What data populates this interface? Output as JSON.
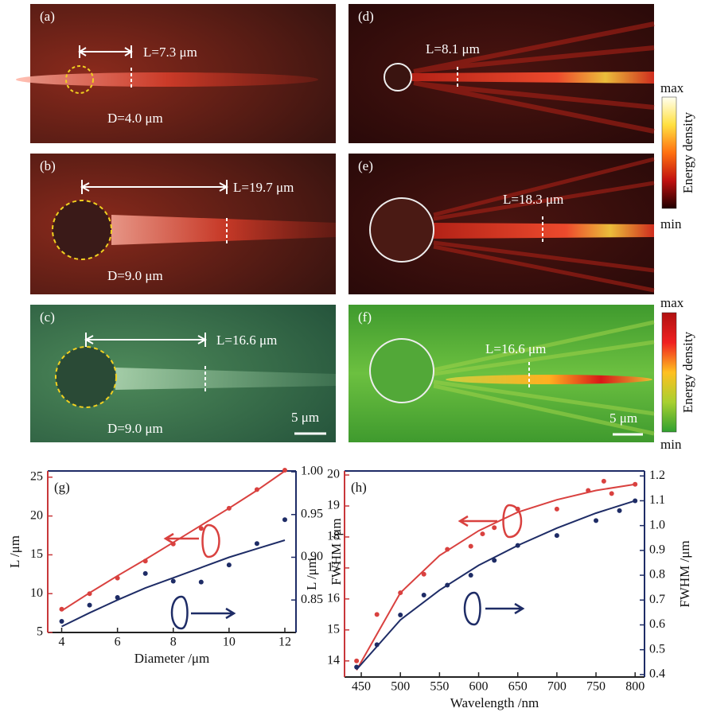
{
  "panels": [
    {
      "label": "(a)",
      "length": "L=7.3 μm",
      "diameter": "D=4.0 μm"
    },
    {
      "label": "(b)",
      "length": "L=19.7 μm",
      "diameter": "D=9.0 μm"
    },
    {
      "label": "(c)",
      "length": "L=16.6 μm",
      "diameter": "D=9.0 μm",
      "scale": "5 μm"
    },
    {
      "label": "(d)",
      "length": "L=8.1 μm"
    },
    {
      "label": "(e)",
      "length": "L=18.3 μm"
    },
    {
      "label": "(f)",
      "length": "L=16.6 μm",
      "scale": "5 μm"
    }
  ],
  "colorbars": [
    {
      "max": "max",
      "min": "min",
      "label": "Energy density"
    },
    {
      "max": "max",
      "min": "min",
      "label": "Energy density"
    }
  ],
  "chart_data": [
    {
      "type": "scatter",
      "label": "(g)",
      "x_label": "Diameter /μm",
      "y_label": "L /μm",
      "y2_label": "FWHM /μm",
      "xlim": [
        3.5,
        12.4
      ],
      "xticks": [
        4,
        6,
        8,
        10,
        12
      ],
      "ylim": [
        5,
        25.8
      ],
      "yticks": [
        5,
        10,
        15,
        20,
        25
      ],
      "y2lim": [
        0.812,
        1.001
      ],
      "y2ticks": [
        0.85,
        {
          "value": 0.9,
          "label": "0.90"
        },
        0.95,
        {
          "value": 1,
          "label": "1.00"
        }
      ],
      "ycolor": "#c8373a",
      "y2color": "#1e2c66",
      "series": [
        {
          "mode": "points",
          "color": "#d9413f",
          "x": [
            4,
            5,
            6,
            7,
            8,
            9,
            10,
            11,
            12
          ],
          "values": [
            8.0,
            10.0,
            12.0,
            14.2,
            16.4,
            18.4,
            21.0,
            23.4,
            25.9
          ]
        },
        {
          "mode": "line",
          "color": "#d9413f",
          "x": [
            4,
            5,
            6,
            7,
            8,
            9,
            10,
            11,
            12
          ],
          "values": [
            7.8,
            10.1,
            12.3,
            14.4,
            16.6,
            18.8,
            21.0,
            23.3,
            25.8
          ]
        },
        {
          "mode": "points",
          "color": "#1e2c66",
          "axis": "y2",
          "x": [
            4,
            5,
            6,
            7,
            8,
            9,
            10,
            11,
            12
          ],
          "values": [
            0.825,
            0.844,
            0.853,
            0.881,
            0.872,
            0.871,
            0.891,
            0.916,
            0.944
          ]
        },
        {
          "mode": "line",
          "color": "#1e2c66",
          "axis": "y2",
          "x": [
            4,
            5,
            6,
            7,
            8,
            9,
            10,
            11,
            12
          ],
          "values": [
            0.819,
            0.835,
            0.85,
            0.864,
            0.876,
            0.888,
            0.9,
            0.91,
            0.92
          ]
        }
      ]
    },
    {
      "type": "scatter",
      "label": "(h)",
      "x_label": "Wavelength /nm",
      "y_label": "L /μm",
      "y2_label": "FWHM /μm",
      "xlim": [
        428.6,
        812
      ],
      "xticks": [
        450,
        500,
        550,
        600,
        650,
        700,
        750,
        800
      ],
      "ylim": [
        13.48,
        20.13
      ],
      "yticks": [
        14,
        15,
        16,
        17,
        18,
        19,
        20
      ],
      "y2lim": [
        0.39,
        1.22
      ],
      "y2ticks": [
        0.4,
        0.5,
        0.6,
        0.7,
        0.8,
        0.9,
        {
          "value": 1,
          "label": "1.0"
        },
        1.1,
        1.2
      ],
      "ycolor": "#c8373a",
      "y2color": "#1e2c66",
      "series": [
        {
          "mode": "points",
          "color": "#d9413f",
          "x": [
            444,
            470,
            500,
            530,
            560,
            590,
            605,
            620,
            650,
            700,
            740,
            760,
            770,
            800
          ],
          "values": [
            14.0,
            15.5,
            16.2,
            16.8,
            17.6,
            17.7,
            18.1,
            18.3,
            18.9,
            18.9,
            19.5,
            19.8,
            19.4,
            19.7
          ]
        },
        {
          "mode": "line",
          "color": "#d9413f",
          "x": [
            444,
            500,
            550,
            600,
            650,
            700,
            750,
            800
          ],
          "values": [
            13.7,
            16.2,
            17.4,
            18.2,
            18.8,
            19.2,
            19.5,
            19.7
          ]
        },
        {
          "mode": "points",
          "color": "#1e2c66",
          "axis": "y2",
          "x": [
            444,
            470,
            500,
            530,
            560,
            590,
            620,
            650,
            700,
            750,
            780,
            800
          ],
          "values": [
            0.43,
            0.52,
            0.64,
            0.72,
            0.76,
            0.8,
            0.86,
            0.92,
            0.96,
            1.02,
            1.06,
            1.1
          ]
        },
        {
          "mode": "line",
          "color": "#1e2c66",
          "axis": "y2",
          "x": [
            444,
            500,
            550,
            600,
            650,
            700,
            750,
            800
          ],
          "values": [
            0.42,
            0.62,
            0.74,
            0.84,
            0.92,
            0.99,
            1.05,
            1.1
          ]
        }
      ]
    }
  ]
}
